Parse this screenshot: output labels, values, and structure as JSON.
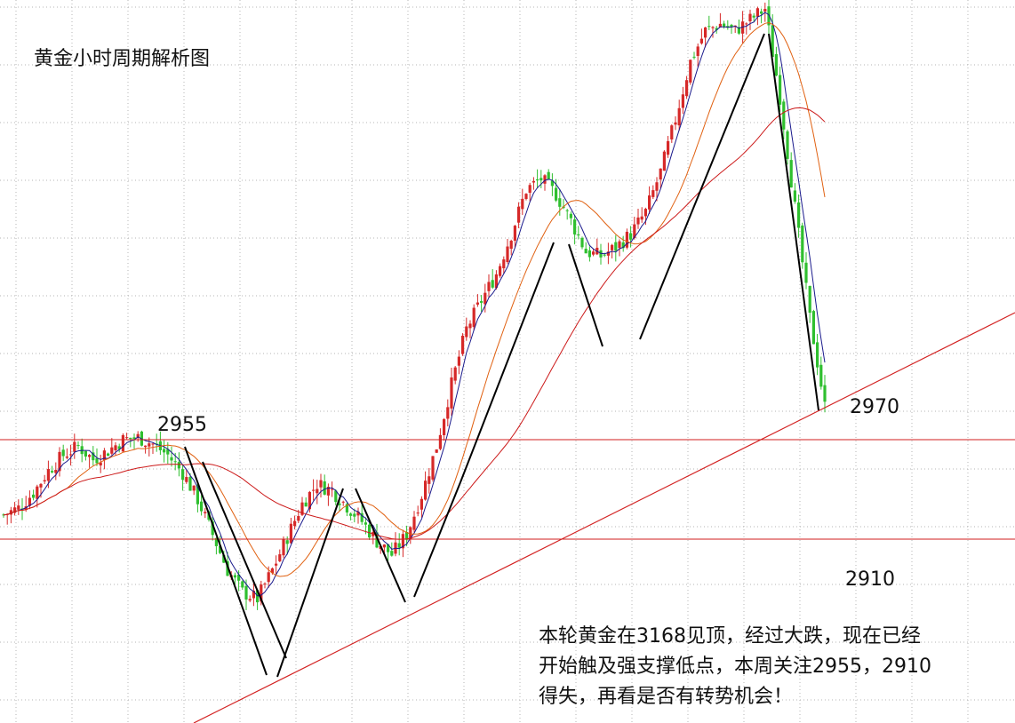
{
  "chart_data": {
    "type": "candlestick",
    "title": "黄金小时周期解析图",
    "grid": true,
    "levels": [
      {
        "label": "2955",
        "value": 2955
      },
      {
        "label": "2910",
        "value": 2910
      }
    ],
    "annotations": [
      {
        "label": "2970"
      }
    ],
    "colors": {
      "up": "#d62828",
      "down": "#2fbf2f",
      "ma_fast": "#1a1a8c",
      "ma_mid": "#e06010",
      "ma_slow": "#cc1a1a",
      "level_line": "#d21e1e",
      "grid": "#b5b5b5"
    },
    "price_path": [
      [
        0,
        2921
      ],
      [
        4,
        2924
      ],
      [
        8,
        2931
      ],
      [
        12,
        2941
      ],
      [
        16,
        2948
      ],
      [
        20,
        2952
      ],
      [
        24,
        2946
      ],
      [
        28,
        2950
      ],
      [
        32,
        2955
      ],
      [
        36,
        2956
      ],
      [
        40,
        2953
      ],
      [
        44,
        2948
      ],
      [
        48,
        2940
      ],
      [
        52,
        2928
      ],
      [
        56,
        2912
      ],
      [
        60,
        2896
      ],
      [
        64,
        2886
      ],
      [
        68,
        2883
      ],
      [
        72,
        2896
      ],
      [
        76,
        2911
      ],
      [
        80,
        2926
      ],
      [
        84,
        2935
      ],
      [
        88,
        2932
      ],
      [
        92,
        2925
      ],
      [
        96,
        2918
      ],
      [
        100,
        2909
      ],
      [
        104,
        2903
      ],
      [
        108,
        2912
      ],
      [
        112,
        2930
      ],
      [
        116,
        2952
      ],
      [
        120,
        2980
      ],
      [
        124,
        3005
      ],
      [
        128,
        3018
      ],
      [
        132,
        3030
      ],
      [
        136,
        3048
      ],
      [
        140,
        3068
      ],
      [
        144,
        3073
      ],
      [
        148,
        3066
      ],
      [
        152,
        3054
      ],
      [
        156,
        3040
      ],
      [
        160,
        3038
      ],
      [
        164,
        3042
      ],
      [
        168,
        3048
      ],
      [
        172,
        3058
      ],
      [
        176,
        3076
      ],
      [
        180,
        3100
      ],
      [
        184,
        3126
      ],
      [
        188,
        3140
      ],
      [
        192,
        3143
      ],
      [
        196,
        3140
      ],
      [
        200,
        3145
      ],
      [
        204,
        3150
      ],
      [
        208,
        3110
      ],
      [
        212,
        3060
      ],
      [
        216,
        3010
      ],
      [
        220,
        2970
      ]
    ]
  },
  "note": {
    "lines": [
      "本轮黄金在3168见顶，经过大跌，现在已经",
      "开始触及强支撑低点，本周关注2955，2910",
      "得失，再看是否有转势机会！"
    ]
  }
}
